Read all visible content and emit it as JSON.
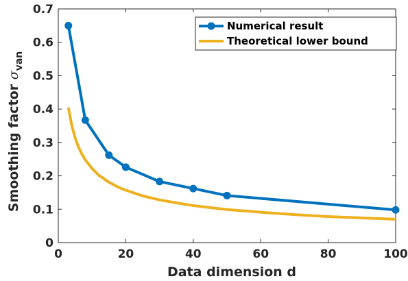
{
  "chart_data": {
    "type": "line",
    "xlabel": "Data dimension d",
    "ylabel": "Smoothing factor ",
    "ylabel_symbol": "σ",
    "ylabel_subscript": "van",
    "xlim": [
      0,
      100
    ],
    "ylim": [
      0,
      0.7
    ],
    "xticks": [
      0,
      20,
      40,
      60,
      80,
      100
    ],
    "yticks": [
      0,
      0.1,
      0.2,
      0.3,
      0.4,
      0.5,
      0.6,
      0.7
    ],
    "grid": false,
    "legend_position": "top-right",
    "series": [
      {
        "name": "Numerical result",
        "color": "#0072BD",
        "markers": true,
        "x": [
          3,
          8,
          15,
          20,
          30,
          40,
          50,
          100
        ],
        "y": [
          0.65,
          0.367,
          0.262,
          0.226,
          0.183,
          0.162,
          0.141,
          0.098
        ]
      },
      {
        "name": "Theoretical lower bound",
        "color": "#EDB120",
        "markers": false,
        "x": [
          3,
          4,
          5,
          6,
          7,
          8,
          10,
          12,
          15,
          18,
          20,
          25,
          30,
          35,
          40,
          45,
          50,
          60,
          70,
          80,
          90,
          100
        ],
        "y": [
          0.405,
          0.351,
          0.314,
          0.286,
          0.265,
          0.248,
          0.222,
          0.202,
          0.181,
          0.165,
          0.157,
          0.14,
          0.128,
          0.119,
          0.111,
          0.105,
          0.099,
          0.091,
          0.084,
          0.078,
          0.074,
          0.07
        ]
      }
    ]
  }
}
